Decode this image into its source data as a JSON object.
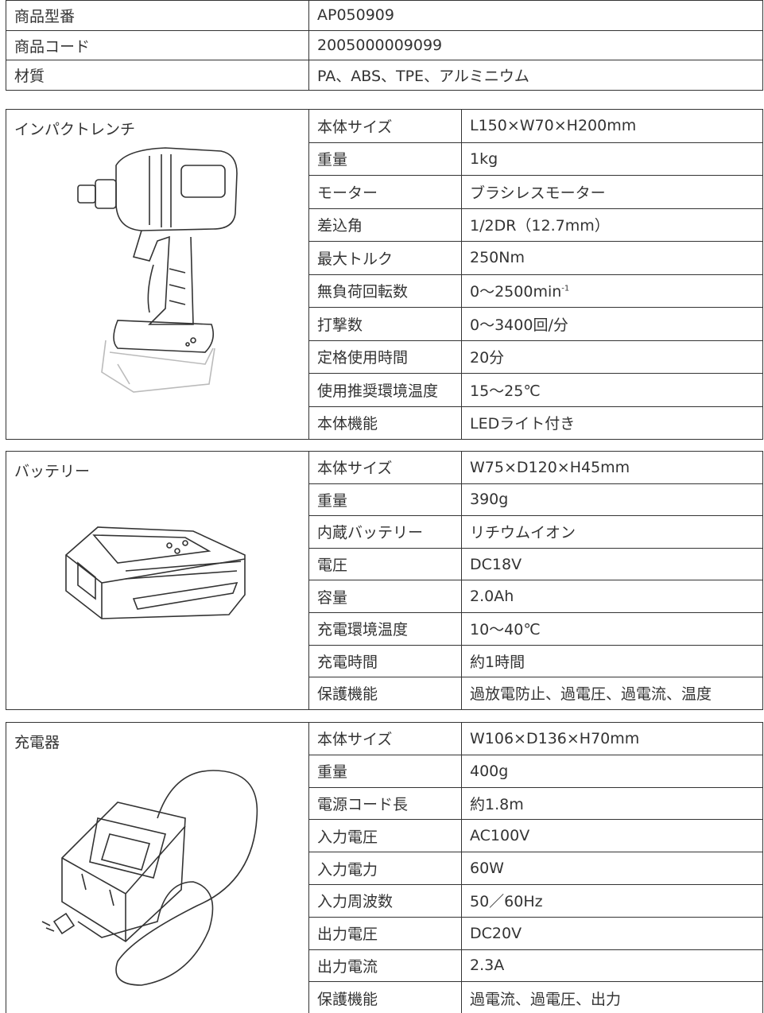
{
  "spec_table": {
    "rows": [
      [
        "商品型番",
        "AP050909"
      ],
      [
        "商品コード",
        "2005000009099"
      ],
      [
        "材質",
        "PA、ABS、TPE、アルミニウム"
      ]
    ]
  },
  "sections": [
    {
      "title": "インパクトレンチ",
      "rows": [
        [
          "本体サイズ",
          "L150×W70×H200mm"
        ],
        [
          "重量",
          "1kg"
        ],
        [
          "モーター",
          "ブラシレスモーター"
        ],
        [
          "差込角",
          "1/2DR（12.7mm）"
        ],
        [
          "最大トルク",
          "250Nm"
        ],
        [
          "無負荷回転数",
          {
            "text": "0〜2500min",
            "sup": "-1"
          }
        ],
        [
          "打撃数",
          "0〜3400回/分"
        ],
        [
          "定格使用時間",
          "20分"
        ],
        [
          "使用推奨環境温度",
          "15〜25℃"
        ],
        [
          "本体機能",
          "LEDライト付き"
        ]
      ]
    },
    {
      "title": "バッテリー",
      "rows": [
        [
          "本体サイズ",
          "W75×D120×H45mm"
        ],
        [
          "重量",
          "390g"
        ],
        [
          "内蔵バッテリー",
          "リチウムイオン"
        ],
        [
          "電圧",
          "DC18V"
        ],
        [
          "容量",
          "2.0Ah"
        ],
        [
          "充電環境温度",
          "10〜40℃"
        ],
        [
          "充電時間",
          "約1時間"
        ],
        [
          "保護機能",
          "過放電防止、過電圧、過電流、温度"
        ]
      ]
    },
    {
      "title": "充電器",
      "rows": [
        [
          "本体サイズ",
          "W106×D136×H70mm"
        ],
        [
          "重量",
          "400g"
        ],
        [
          "電源コード長",
          "約1.8m"
        ],
        [
          "入力電圧",
          "AC100V"
        ],
        [
          "入力電力",
          "60W"
        ],
        [
          "入力周波数",
          "50／60Hz"
        ],
        [
          "出力電圧",
          "DC20V"
        ],
        [
          "出力電流",
          "2.3A"
        ],
        [
          "保護機能",
          "過電流、過電圧、出力"
        ]
      ]
    }
  ]
}
